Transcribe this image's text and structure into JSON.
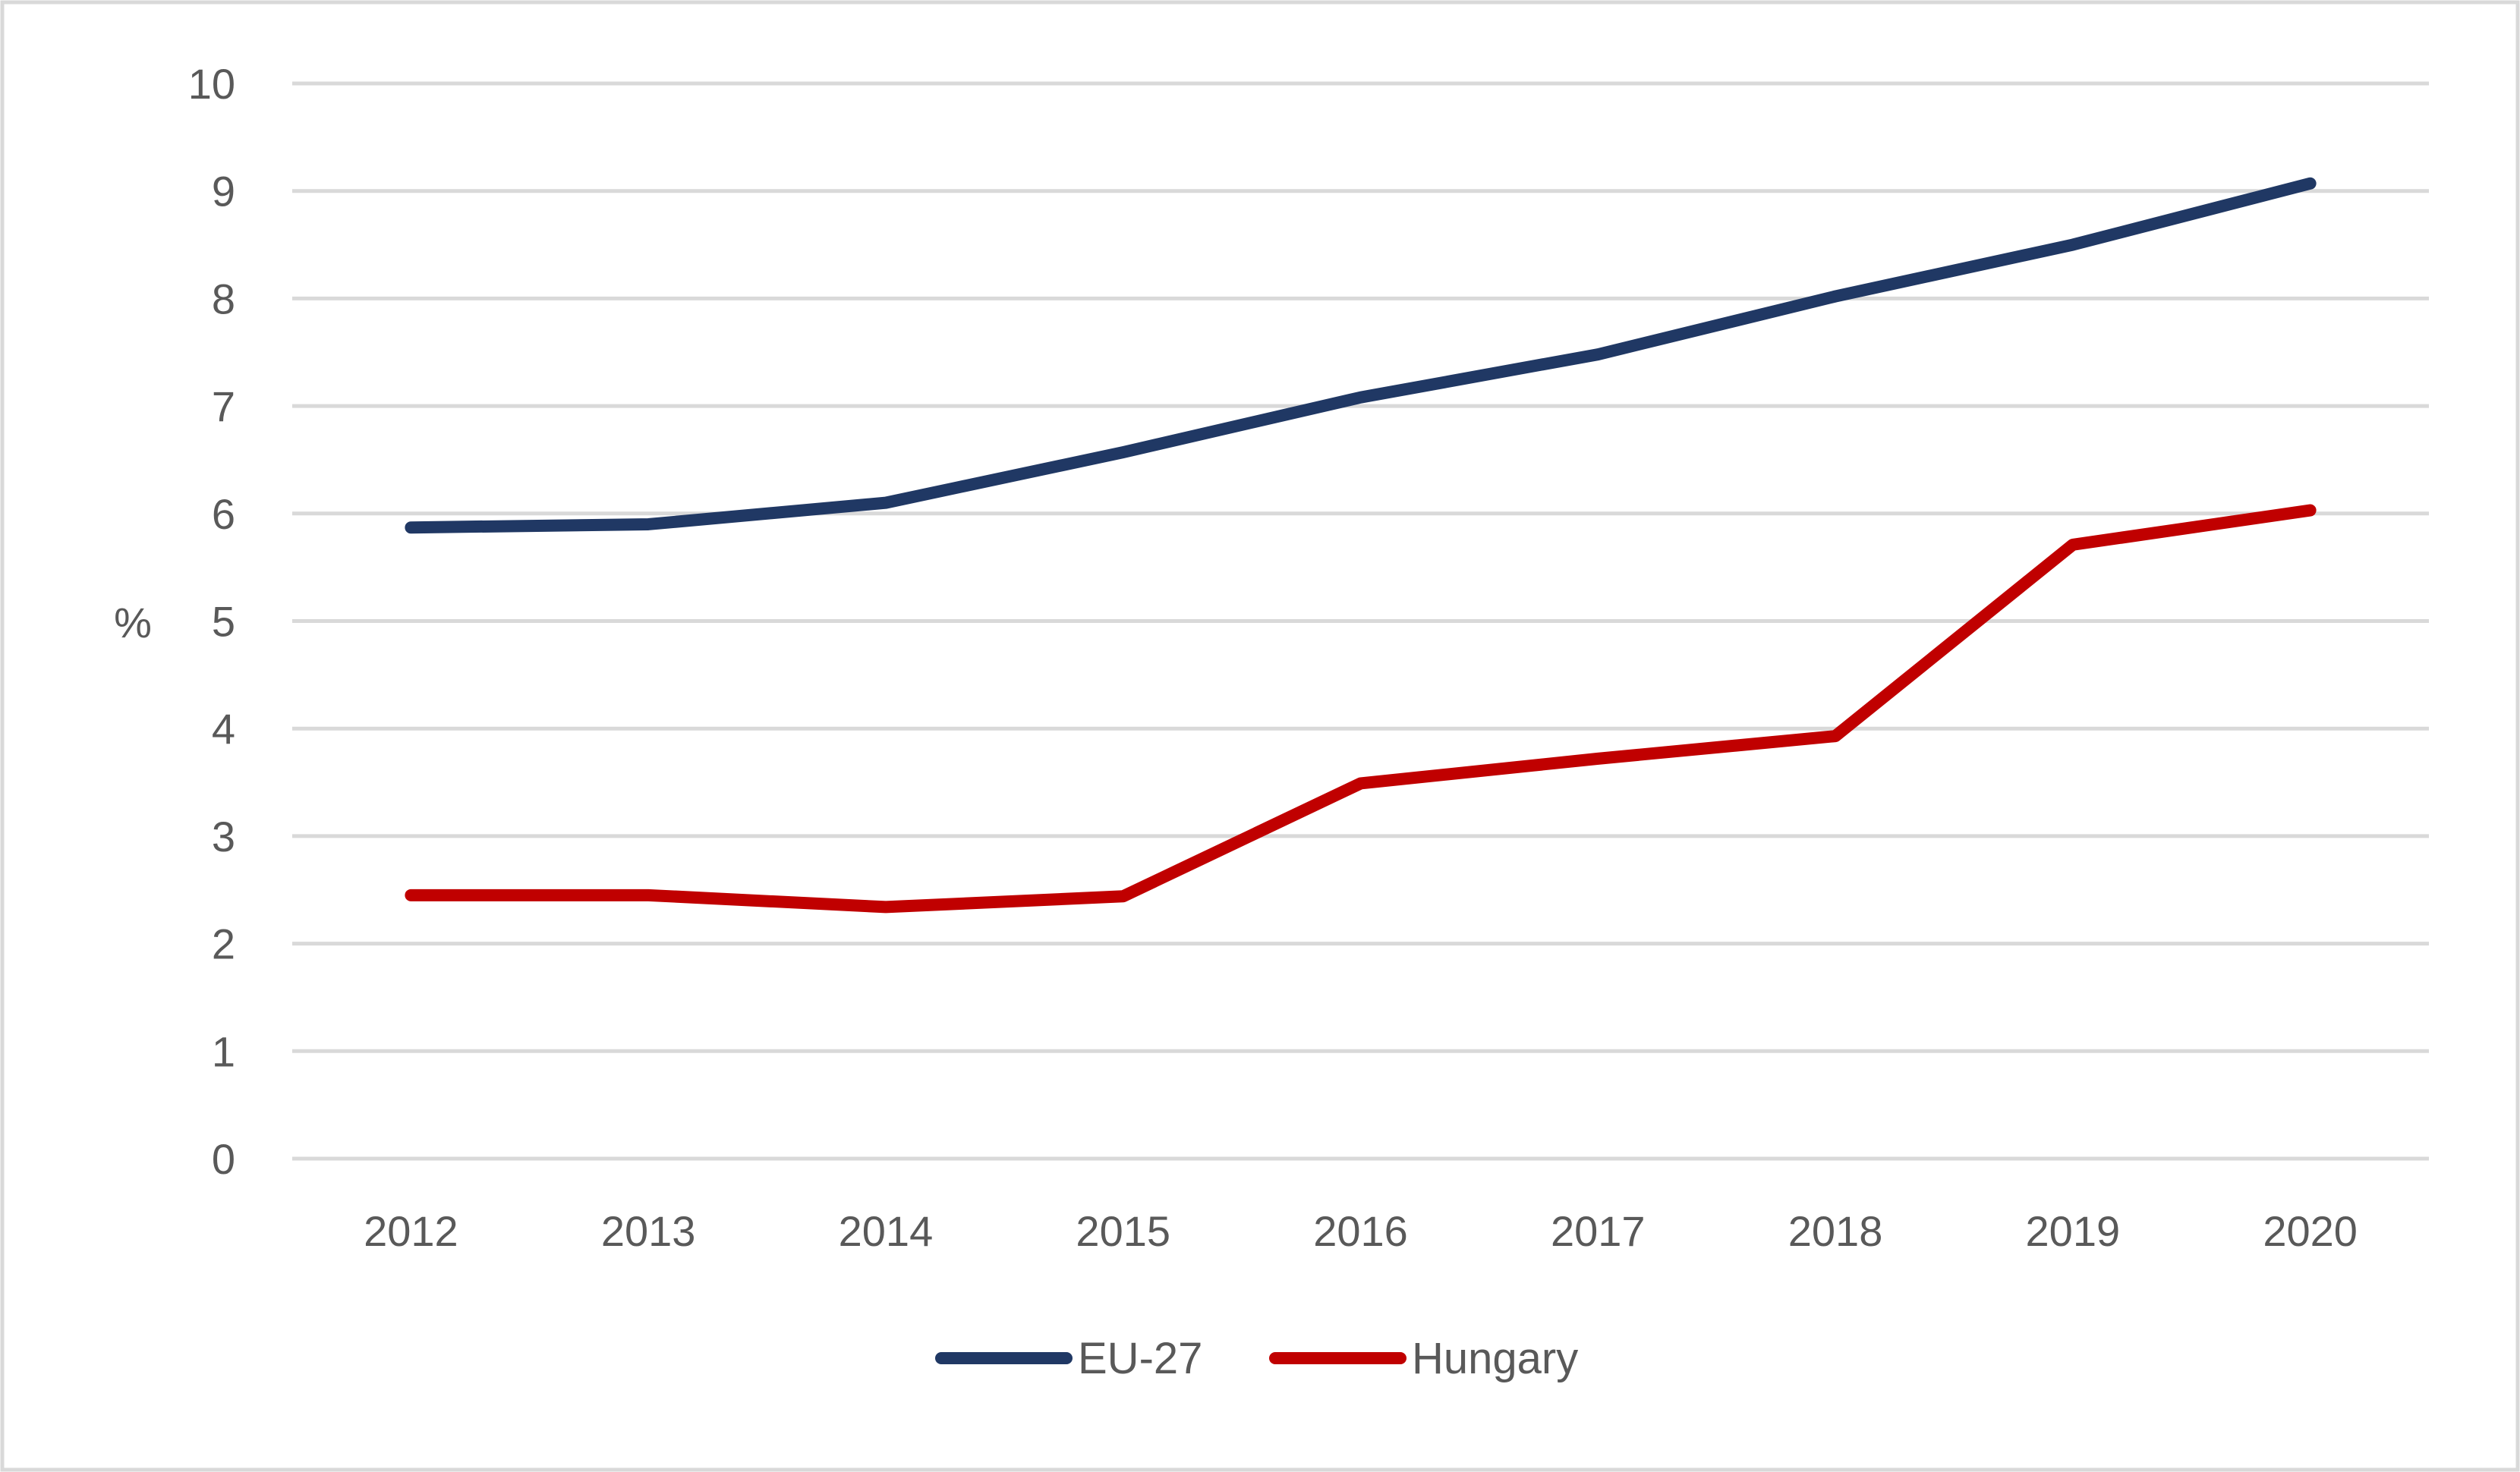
{
  "chart_data": {
    "type": "line",
    "title": "",
    "xlabel": "",
    "ylabel": "%",
    "ylim": [
      0,
      10
    ],
    "yticks": [
      "0",
      "1",
      "2",
      "3",
      "4",
      "5",
      "6",
      "7",
      "8",
      "9",
      "10"
    ],
    "categories": [
      "2012",
      "2013",
      "2014",
      "2015",
      "2016",
      "2017",
      "2018",
      "2019",
      "2020"
    ],
    "grid": true,
    "legend_position": "bottom",
    "series": [
      {
        "name": "EU-27",
        "color": "#203864",
        "values": [
          5.87,
          5.9,
          6.1,
          6.57,
          7.08,
          7.48,
          8.02,
          8.5,
          9.07
        ]
      },
      {
        "name": "Hungary",
        "color": "#C00000",
        "values": [
          2.45,
          2.45,
          2.34,
          2.44,
          3.49,
          3.72,
          3.93,
          5.71,
          6.03
        ]
      }
    ],
    "colors": {
      "grid": "#D9D9D9",
      "frame": "#D9D9D9",
      "text": "#595959"
    }
  }
}
